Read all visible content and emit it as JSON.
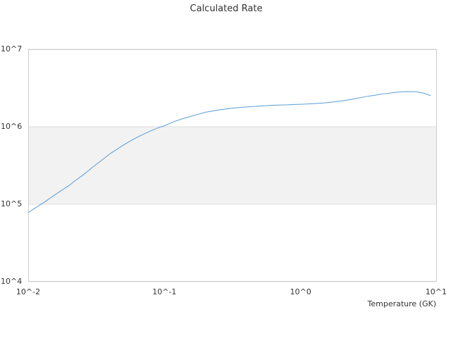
{
  "chart_data": {
    "type": "line",
    "title": "Calculated Rate",
    "xlabel": "Temperature (GK)",
    "ylabel": "",
    "x_scale": "log",
    "y_scale": "log",
    "xlim": [
      0.01,
      10
    ],
    "ylim": [
      10000,
      10000000
    ],
    "grid": true,
    "legend": "none",
    "x_ticks": [
      {
        "value": 0.01,
        "label": "10^-2"
      },
      {
        "value": 0.1,
        "label": "10^-1"
      },
      {
        "value": 1,
        "label": "10^0"
      },
      {
        "value": 10,
        "label": "10^1"
      }
    ],
    "y_ticks": [
      {
        "value": 10000,
        "label": "10^4"
      },
      {
        "value": 100000,
        "label": "10^5"
      },
      {
        "value": 1000000,
        "label": "10^6"
      },
      {
        "value": 10000000,
        "label": "10^7"
      }
    ],
    "band": {
      "from": 100000,
      "to": 1000000,
      "color": "#f2f2f2"
    },
    "colors": {
      "line": "#5b9bd5",
      "grid": "#dddddd",
      "plot_border": "#cccccc",
      "text": "#333333"
    },
    "series": [
      {
        "x": [
          0.01,
          0.011,
          0.012,
          0.013,
          0.014,
          0.015,
          0.016,
          0.018,
          0.02,
          0.022,
          0.025,
          0.028,
          0.03,
          0.035,
          0.04,
          0.045,
          0.05,
          0.06,
          0.07,
          0.08,
          0.09,
          0.1,
          0.12,
          0.14,
          0.16,
          0.18,
          0.2,
          0.25,
          0.3,
          0.35,
          0.4,
          0.5,
          0.6,
          0.7,
          0.8,
          0.9,
          1.0,
          1.2,
          1.5,
          2.0,
          2.5,
          3.0,
          3.5,
          4.0,
          5.0,
          6.0,
          7.0,
          8.0,
          9.0
        ],
        "y": [
          78000,
          87000,
          96000,
          105000,
          115000,
          125000,
          135000,
          155000,
          175000,
          200000,
          235000,
          275000,
          305000,
          375000,
          450000,
          515000,
          580000,
          700000,
          800000,
          890000,
          970000,
          1030000,
          1180000,
          1290000,
          1380000,
          1460000,
          1540000,
          1650000,
          1720000,
          1770000,
          1800000,
          1850000,
          1890000,
          1910000,
          1920000,
          1940000,
          1950000,
          1980000,
          2030000,
          2150000,
          2300000,
          2450000,
          2550000,
          2650000,
          2780000,
          2850000,
          2830000,
          2720000,
          2520000
        ]
      }
    ]
  }
}
